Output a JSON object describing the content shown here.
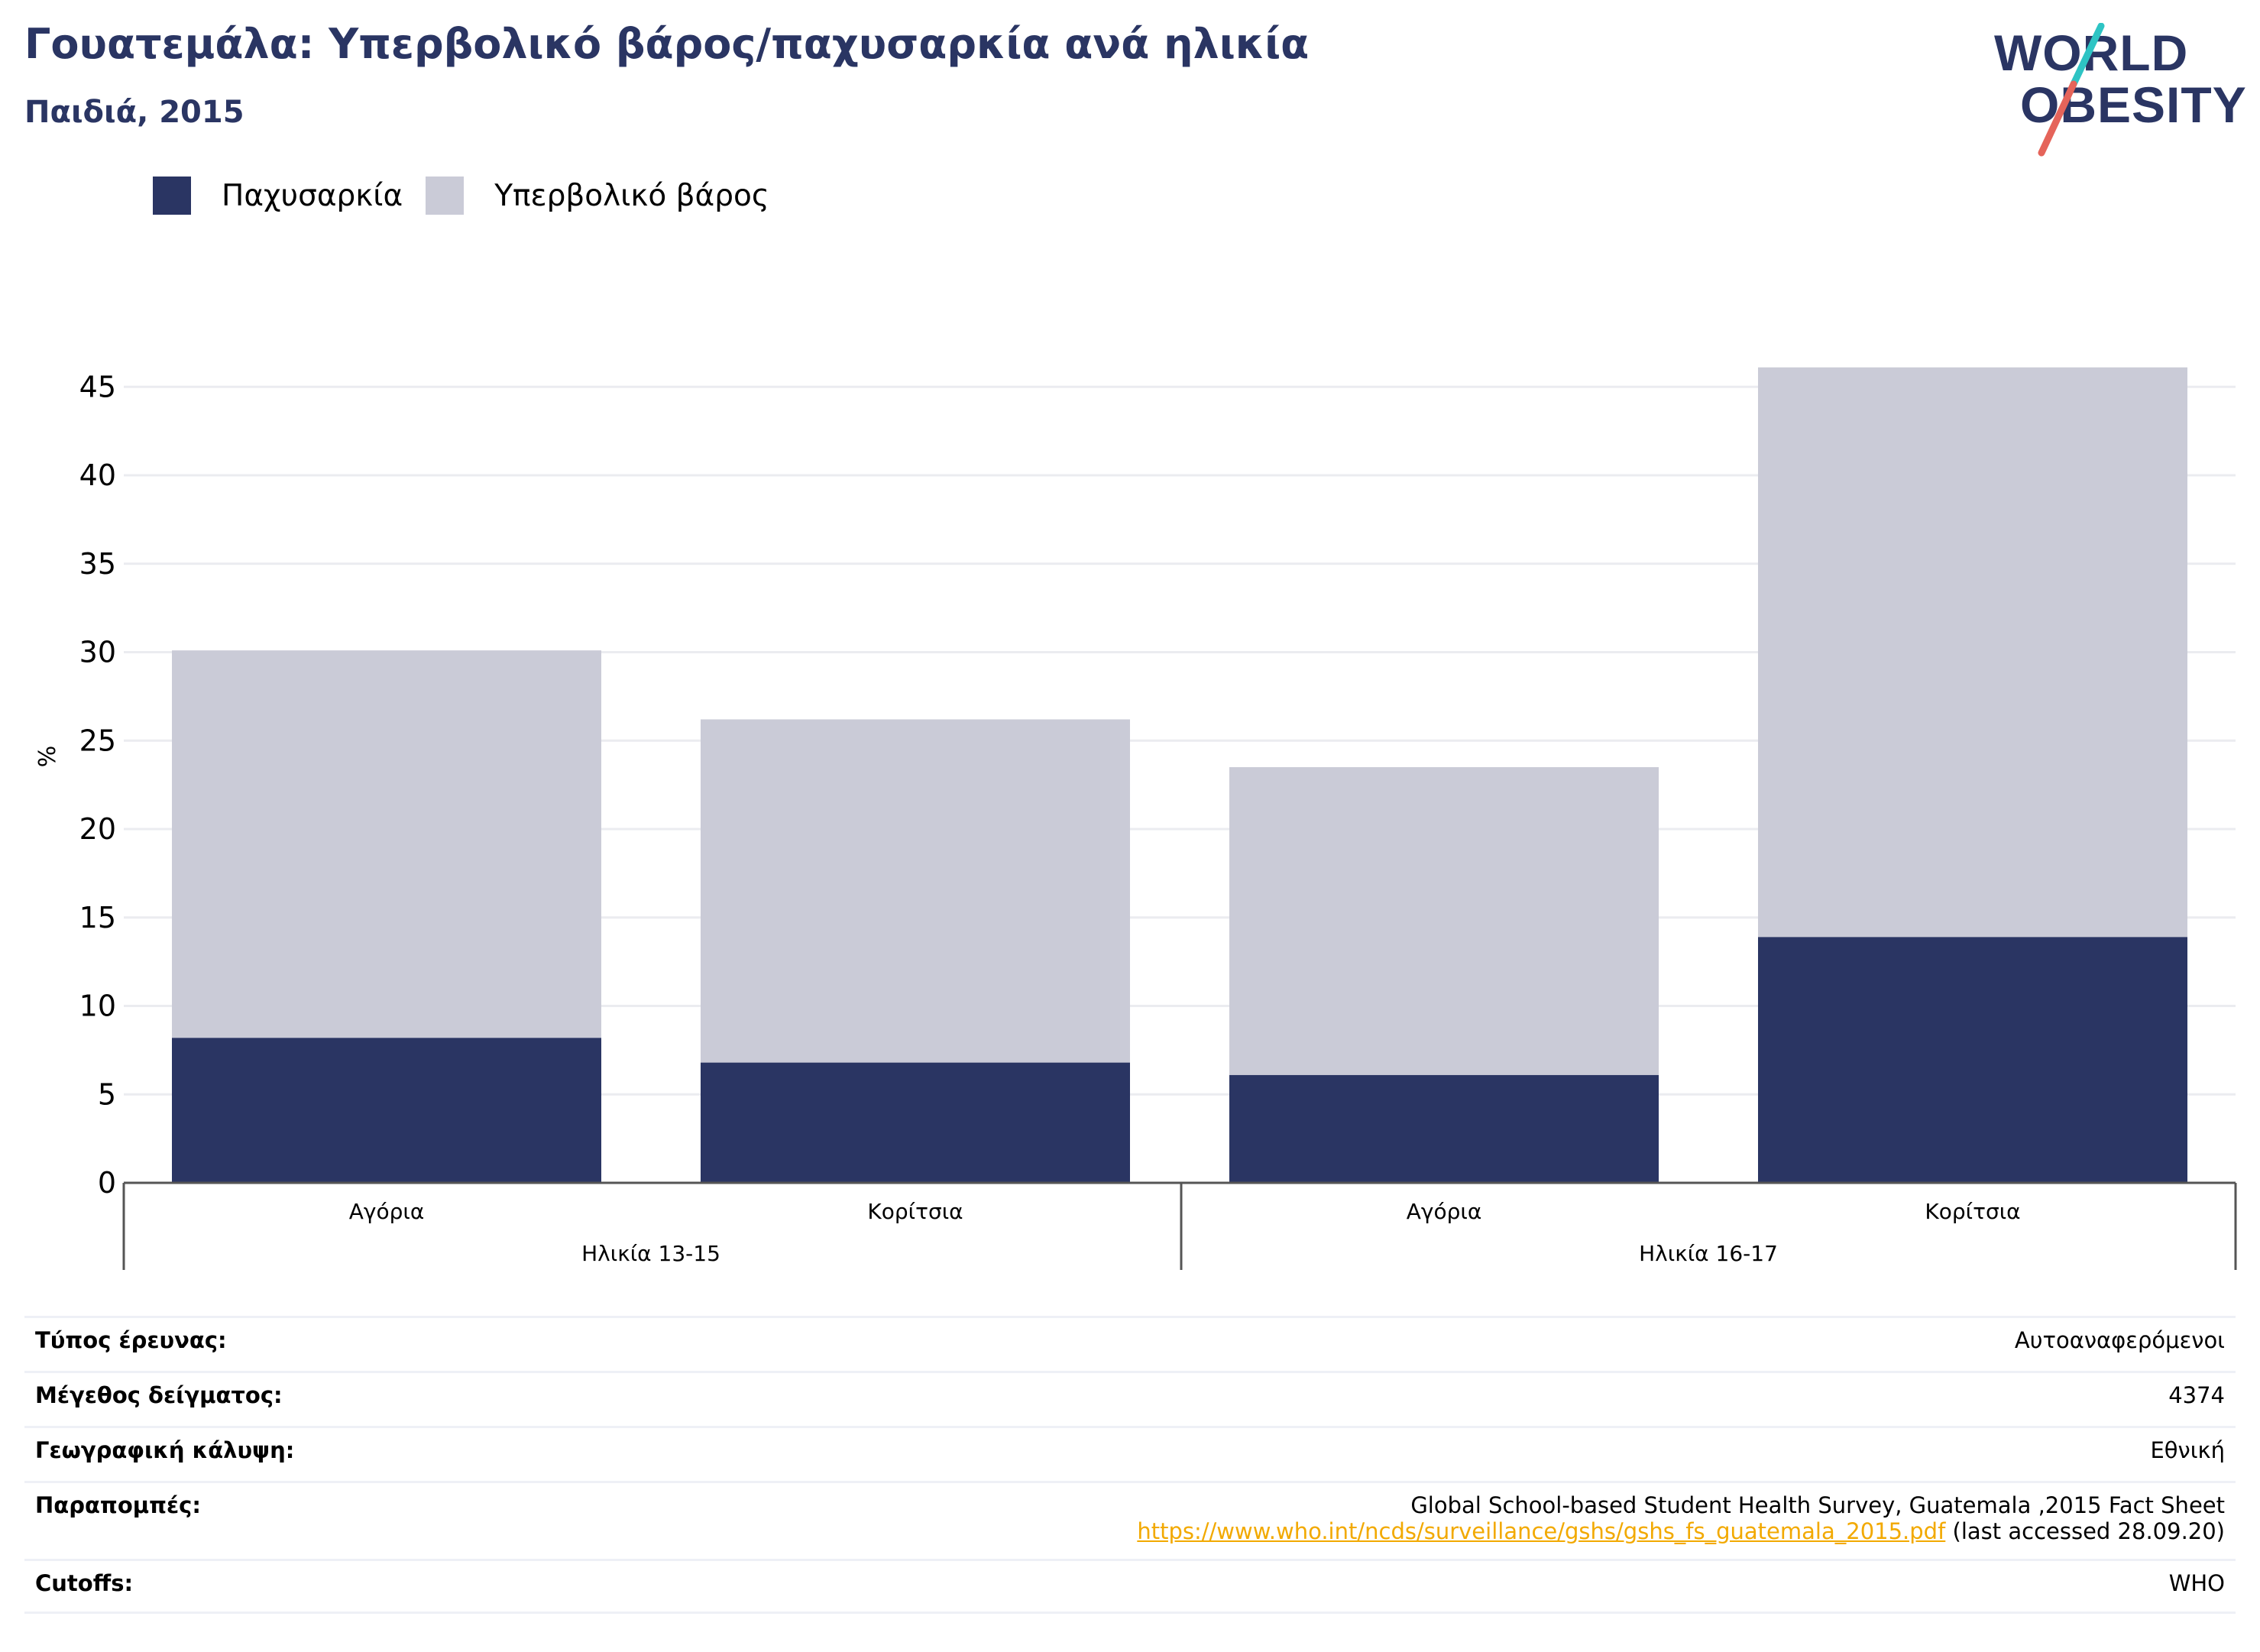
{
  "header": {
    "title": "Γουατεμάλα: Υπερβολικό βάρος/παχυσαρκία ανά ηλικία",
    "subtitle": "Παιδιά, 2015",
    "logo_line1": "WORLD",
    "logo_line2": "OBESITY"
  },
  "colors": {
    "obesity": "#2a3563",
    "overweight": "#cacbd7",
    "title": "#2a3563",
    "link": "#f2a900",
    "logo_teal": "#2ec4c4",
    "logo_red": "#e5645a"
  },
  "chart_data": {
    "type": "bar",
    "stacked": true,
    "categories": [
      "Αγόρια",
      "Κορίτσια",
      "Αγόρια",
      "Κορίτσια"
    ],
    "groups": [
      {
        "label": "Ηλικία 13-15",
        "categories": [
          0,
          1
        ]
      },
      {
        "label": "Ηλικία 16-17",
        "categories": [
          2,
          3
        ]
      }
    ],
    "series": [
      {
        "name": "Παχυσαρκία",
        "values": [
          8.2,
          6.8,
          6.1,
          13.9
        ]
      },
      {
        "name": "Υπερβολικό βάρος",
        "values": [
          21.9,
          19.4,
          17.4,
          32.2
        ]
      }
    ],
    "ylabel": "%",
    "ylim": [
      0,
      46
    ],
    "yticks": [
      "0",
      "5",
      "10",
      "15",
      "20",
      "25",
      "30",
      "35",
      "40",
      "45"
    ],
    "grid": true,
    "legend_position": "top-left"
  },
  "info": {
    "survey_type_label": "Τύπος έρευνας:",
    "survey_type_value": "Αυτοαναφερόμενοι",
    "sample_size_label": "Μέγεθος δείγματος:",
    "sample_size_value": "4374",
    "coverage_label": "Γεωγραφική κάλυψη:",
    "coverage_value": "Εθνική",
    "references_label": "Παραπομπές:",
    "references_value": "Global School-based Student Health Survey, Guatemala ,2015 Fact Sheet",
    "references_link": "https://www.who.int/ncds/surveillance/gshs/gshs_fs_guatemala_2015.pdf",
    "references_note": " (last accessed 28.09.20)",
    "cutoffs_label": "Cutoffs:",
    "cutoffs_value": "WHO"
  }
}
